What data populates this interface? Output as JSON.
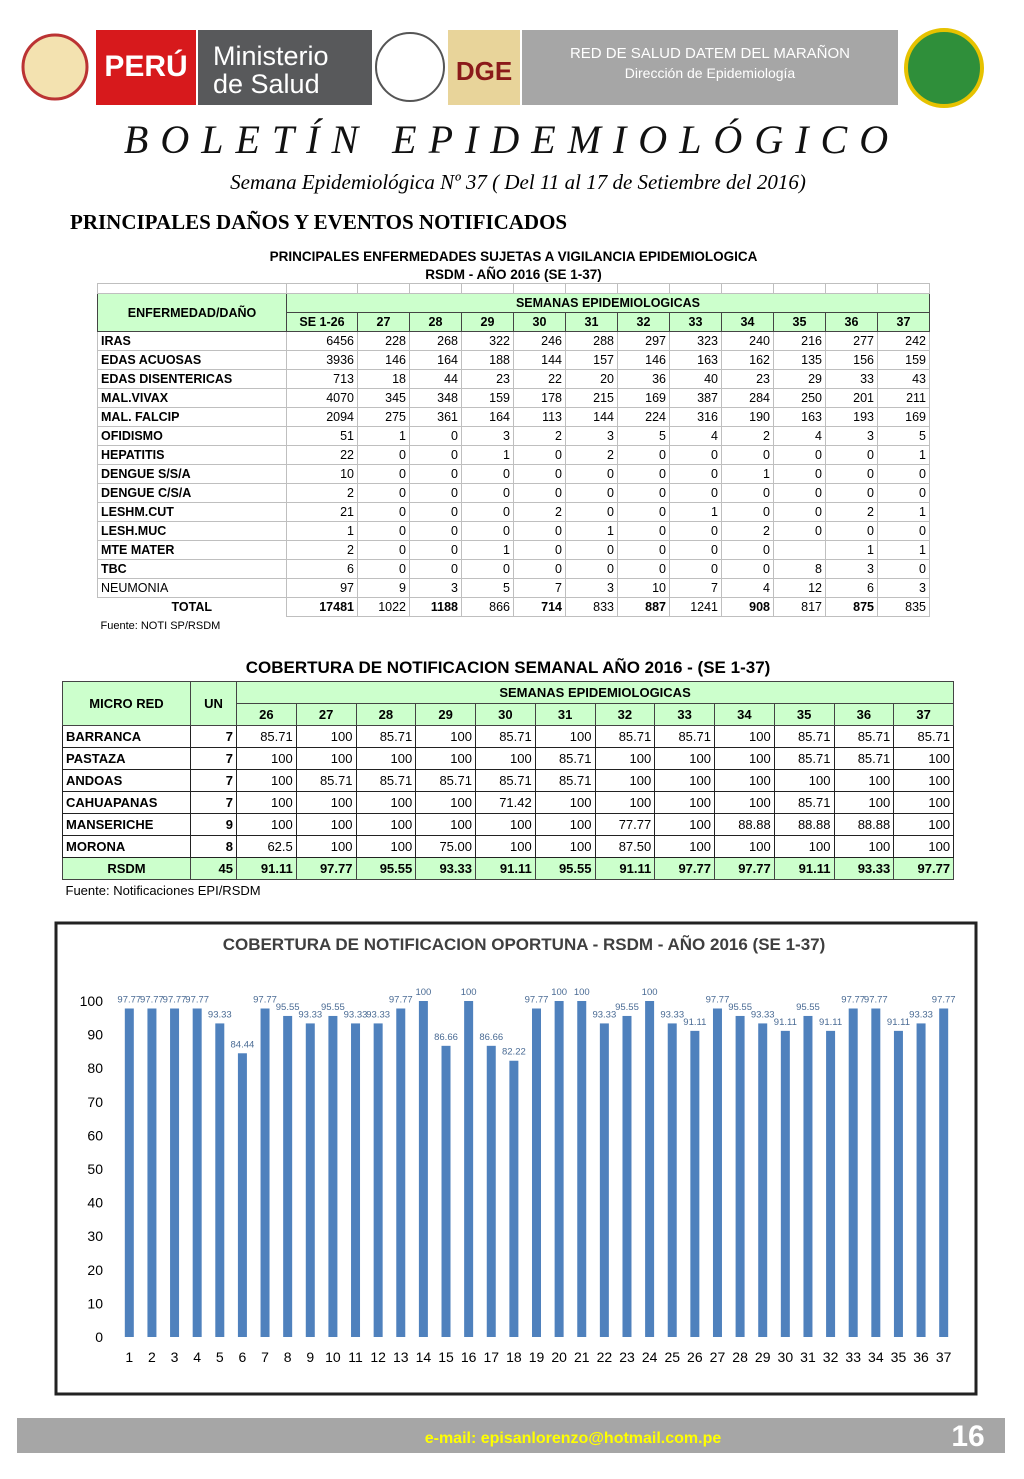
{
  "header": {
    "logo_peru": "PERÚ",
    "logo_minsa_1": "Ministerio",
    "logo_minsa_2": "de Salud",
    "network_1": "RED DE SALUD DATEM DEL MARAÑON",
    "network_2": "Dirección de Epidemiología"
  },
  "title": "BOLETÍN EPIDEMIOLÓGICO",
  "subtitle": "Semana Epidemiológica Nº 37 ( Del  11 al 17 de Setiembre del 2016)",
  "section": "PRINCIPALES DAÑOS Y EVENTOS NOTIFICADOS",
  "table1": {
    "title_lines": [
      "PRINCIPALES ENFERMEDADES SUJETAS A VIGILANCIA EPIDEMIOLOGICA",
      "RSDM - AÑO 2016 (SE 1-37)"
    ],
    "row_header": "ENFERMEDAD/DAÑO",
    "group_header": "SEMANAS EPIDEMIOLOGICAS",
    "columns": [
      "SE 1-26",
      "27",
      "28",
      "29",
      "30",
      "31",
      "32",
      "33",
      "34",
      "35",
      "36",
      "37"
    ],
    "rows": [
      {
        "label": "IRAS",
        "values": [
          6456,
          228,
          268,
          322,
          246,
          288,
          297,
          323,
          240,
          216,
          277,
          242
        ]
      },
      {
        "label": "EDAS ACUOSAS",
        "values": [
          3936,
          146,
          164,
          188,
          144,
          157,
          146,
          163,
          162,
          135,
          156,
          159
        ]
      },
      {
        "label": "EDAS DISENTERICAS",
        "values": [
          713,
          18,
          44,
          23,
          22,
          20,
          36,
          40,
          23,
          29,
          33,
          43
        ]
      },
      {
        "label": "MAL.VIVAX",
        "values": [
          4070,
          345,
          348,
          159,
          178,
          215,
          169,
          387,
          284,
          250,
          201,
          211
        ]
      },
      {
        "label": "MAL. FALCIP",
        "values": [
          2094,
          275,
          361,
          164,
          113,
          144,
          224,
          316,
          190,
          163,
          193,
          169
        ]
      },
      {
        "label": "OFIDISMO",
        "values": [
          51,
          1,
          0,
          3,
          2,
          3,
          5,
          4,
          2,
          4,
          3,
          5
        ]
      },
      {
        "label": "HEPATITIS",
        "values": [
          22,
          0,
          0,
          1,
          0,
          2,
          0,
          0,
          0,
          0,
          0,
          1
        ]
      },
      {
        "label": "DENGUE S/S/A",
        "values": [
          10,
          0,
          0,
          0,
          0,
          0,
          0,
          0,
          1,
          0,
          0,
          0
        ]
      },
      {
        "label": "DENGUE C/S/A",
        "values": [
          2,
          0,
          0,
          0,
          0,
          0,
          0,
          0,
          0,
          0,
          0,
          0
        ]
      },
      {
        "label": "LESHM.CUT",
        "values": [
          21,
          0,
          0,
          0,
          2,
          0,
          0,
          1,
          0,
          0,
          2,
          1
        ]
      },
      {
        "label": "LESH.MUC",
        "values": [
          1,
          0,
          0,
          0,
          0,
          1,
          0,
          0,
          2,
          0,
          0,
          0
        ]
      },
      {
        "label": "MTE MATER",
        "values": [
          2,
          0,
          0,
          1,
          0,
          0,
          0,
          0,
          0,
          null,
          1,
          1
        ]
      },
      {
        "label": "TBC",
        "values": [
          6,
          0,
          0,
          0,
          0,
          0,
          0,
          0,
          0,
          8,
          3,
          0
        ]
      },
      {
        "label": "NEUMONIA",
        "values": [
          97,
          9,
          3,
          5,
          7,
          3,
          10,
          7,
          4,
          12,
          6,
          3
        ]
      }
    ],
    "total": {
      "label": "TOTAL",
      "values": [
        17481,
        1022,
        1188,
        866,
        714,
        833,
        887,
        1241,
        908,
        817,
        875,
        835
      ]
    },
    "source": "Fuente: NOTI SP/RSDM"
  },
  "table2": {
    "title": "COBERTURA DE NOTIFICACION SEMANAL  AÑO 2016 - (SE 1-37)",
    "row_header": "MICRO RED",
    "un_header": "UN",
    "group_header": "SEMANAS EPIDEMIOLOGICAS",
    "columns": [
      "26",
      "27",
      "28",
      "29",
      "30",
      "31",
      "32",
      "33",
      "34",
      "35",
      "36",
      "37"
    ],
    "rows": [
      {
        "label": "BARRANCA",
        "un": "7",
        "values": [
          "85.71",
          "100",
          "85.71",
          "100",
          "85.71",
          "100",
          "85.71",
          "85.71",
          "100",
          "85.71",
          "85.71",
          "85.71"
        ]
      },
      {
        "label": "PASTAZA",
        "un": "7",
        "values": [
          "100",
          "100",
          "100",
          "100",
          "100",
          "85.71",
          "100",
          "100",
          "100",
          "85.71",
          "85.71",
          "100"
        ]
      },
      {
        "label": "ANDOAS",
        "un": "7",
        "values": [
          "100",
          "85.71",
          "85.71",
          "85.71",
          "85.71",
          "85.71",
          "100",
          "100",
          "100",
          "100",
          "100",
          "100"
        ]
      },
      {
        "label": "CAHUAPANAS",
        "un": "7",
        "values": [
          "100",
          "100",
          "100",
          "100",
          "71.42",
          "100",
          "100",
          "100",
          "100",
          "85.71",
          "100",
          "100"
        ]
      },
      {
        "label": "MANSERICHE",
        "un": "9",
        "values": [
          "100",
          "100",
          "100",
          "100",
          "100",
          "100",
          "77.77",
          "100",
          "88.88",
          "88.88",
          "88.88",
          "100"
        ]
      },
      {
        "label": "MORONA",
        "un": "8",
        "values": [
          "62.5",
          "100",
          "100",
          "75.00",
          "100",
          "100",
          "87.50",
          "100",
          "100",
          "100",
          "100",
          "100"
        ]
      }
    ],
    "total": {
      "label": "RSDM",
      "un": "45",
      "values": [
        "91.11",
        "97.77",
        "95.55",
        "93.33",
        "91.11",
        "95.55",
        "91.11",
        "97.77",
        "97.77",
        "91.11",
        "93.33",
        "97.77"
      ]
    },
    "source": "Fuente: Notificaciones EPI/RSDM"
  },
  "chart_data": {
    "type": "bar",
    "title": "COBERTURA DE NOTIFICACION OPORTUNA - RSDM - AÑO 2016   (SE 1-37)",
    "categories": [
      1,
      2,
      3,
      4,
      5,
      6,
      7,
      8,
      9,
      10,
      11,
      12,
      13,
      14,
      15,
      16,
      17,
      18,
      19,
      20,
      21,
      22,
      23,
      24,
      25,
      26,
      27,
      28,
      29,
      30,
      31,
      32,
      33,
      34,
      35,
      36,
      37
    ],
    "values": [
      97.77,
      97.77,
      97.77,
      97.77,
      93.33,
      84.44,
      97.77,
      95.55,
      93.33,
      95.55,
      93.33,
      93.33,
      97.77,
      100,
      86.66,
      100,
      86.66,
      82.22,
      97.77,
      100,
      100,
      93.33,
      95.55,
      100,
      93.33,
      91.11,
      97.77,
      95.55,
      93.33,
      91.11,
      95.55,
      91.11,
      97.77,
      97.77,
      91.11,
      93.33,
      97.77
    ],
    "color": "#4f81bd",
    "ylim": [
      0,
      100
    ],
    "yticks": [
      0,
      10,
      20,
      30,
      40,
      50,
      60,
      70,
      80,
      90,
      100
    ],
    "grid": false,
    "data_labels": true
  },
  "footer": {
    "email": "e-mail: episanlorenzo@hotmail.com.pe",
    "page": "16"
  }
}
